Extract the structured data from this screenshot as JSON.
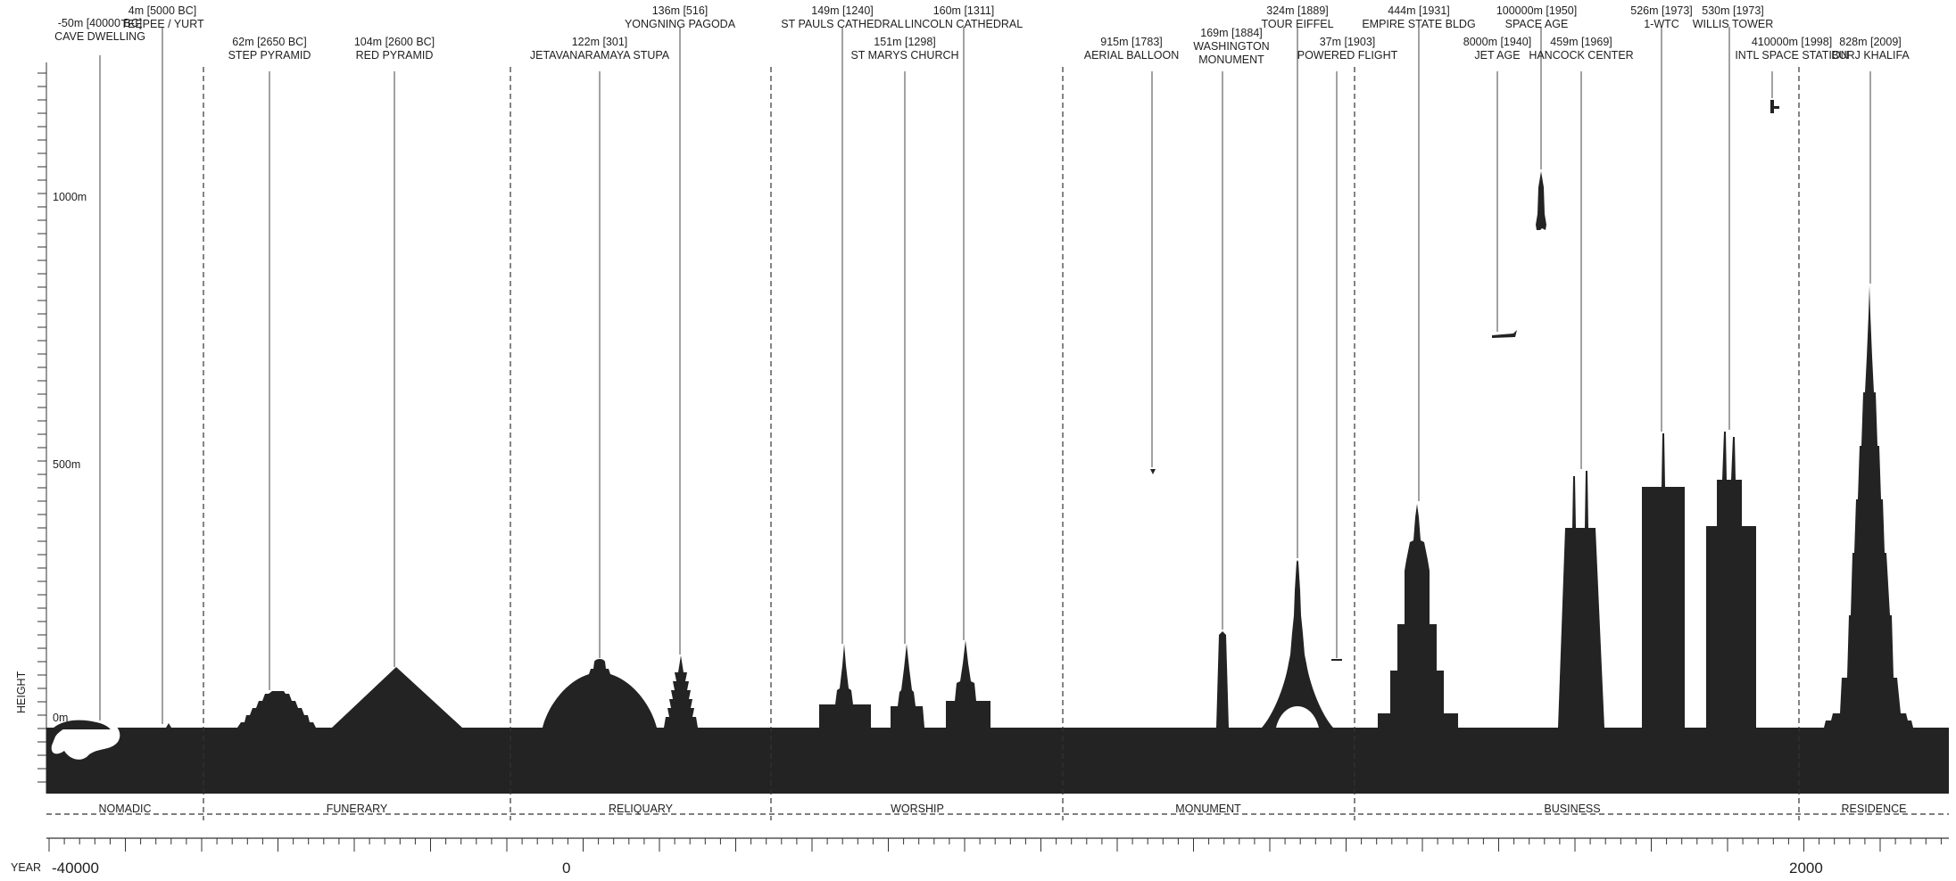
{
  "axis": {
    "vertical_label": "HEIGHT",
    "height_ticks": [
      "0m",
      "500m",
      "1000m"
    ],
    "year_label": "YEAR",
    "year_ticks": [
      "-40000",
      "0",
      "2000"
    ]
  },
  "categories": [
    "NOMADIC",
    "FUNERARY",
    "RELIQUARY",
    "WORSHIP",
    "MONUMENT",
    "BUSINESS",
    "RESIDENCE"
  ],
  "structures": [
    {
      "id": "cave-dwelling",
      "line1": "-50m [40000 BC]",
      "line2": "CAVE DWELLING"
    },
    {
      "id": "teepee-yurt",
      "line1": "4m [5000 BC]",
      "line2": "TEEPEE / YURT"
    },
    {
      "id": "step-pyramid",
      "line1": "62m [2650 BC]",
      "line2": "STEP PYRAMID"
    },
    {
      "id": "red-pyramid",
      "line1": "104m [2600 BC]",
      "line2": "RED PYRAMID"
    },
    {
      "id": "jetavanaramaya-stupa",
      "line1": "122m [301]",
      "line2": "JETAVANARAMAYA STUPA"
    },
    {
      "id": "yongning-pagoda",
      "line1": "136m [516]",
      "line2": "YONGNING PAGODA"
    },
    {
      "id": "st-pauls-cathedral",
      "line1": "149m [1240]",
      "line2": "ST PAULS CATHEDRAL"
    },
    {
      "id": "st-marys-church",
      "line1": "151m [1298]",
      "line2": "ST MARYS CHURCH"
    },
    {
      "id": "lincoln-cathedral",
      "line1": "160m [1311]",
      "line2": "LINCOLN CATHEDRAL"
    },
    {
      "id": "aerial-balloon",
      "line1": "915m [1783]",
      "line2": "AERIAL BALLOON"
    },
    {
      "id": "washington-monument",
      "line1": "169m [1884]",
      "line2": "WASHINGTON",
      "line3": "MONUMENT"
    },
    {
      "id": "tour-eiffel",
      "line1": "324m [1889]",
      "line2": "TOUR EIFFEL"
    },
    {
      "id": "powered-flight",
      "line1": "37m [1903]",
      "line2": "POWERED FLIGHT"
    },
    {
      "id": "empire-state-bldg",
      "line1": "444m [1931]",
      "line2": "EMPIRE STATE BLDG"
    },
    {
      "id": "jet-age",
      "line1": "8000m [1940]",
      "line2": "JET AGE"
    },
    {
      "id": "space-age",
      "line1": "100000m [1950]",
      "line2": "SPACE AGE"
    },
    {
      "id": "hancock-center",
      "line1": "459m [1969]",
      "line2": "HANCOCK CENTER"
    },
    {
      "id": "one-wtc",
      "line1": "526m [1973]",
      "line2": "1-WTC"
    },
    {
      "id": "willis-tower",
      "line1": "530m [1973]",
      "line2": "WILLIS TOWER"
    },
    {
      "id": "intl-space-station",
      "line1": "410000m [1998]",
      "line2": "INTL SPACE STATION"
    },
    {
      "id": "burj-khalifa",
      "line1": "828m [2009]",
      "line2": "BURJ KHALIFA"
    }
  ]
}
